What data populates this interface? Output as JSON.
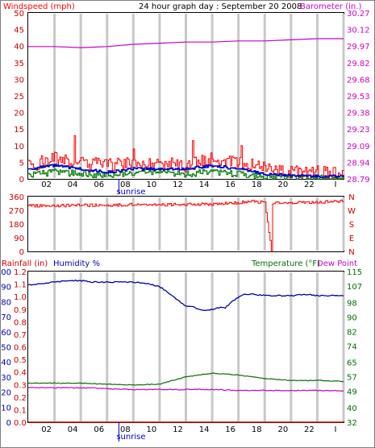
{
  "header": {
    "title": "24 hour graph day : September 20 2008",
    "left_label": "Windspeed (mph)",
    "right_label": "Barometer (in.)"
  },
  "colors": {
    "windspeed": "#ff0000",
    "barometer": "#cc00cc",
    "average": "#0000cc",
    "gust_low": "#008000",
    "humidity": "#0000aa",
    "temperature": "#007000",
    "dewpoint": "#cc00cc",
    "rain": "#cc0000",
    "grid": "#c8c8c8",
    "sunrise_marker": "#0000cc"
  },
  "x_ticks": [
    "02",
    "04",
    "06",
    "08",
    "10",
    "12",
    "14",
    "16",
    "18",
    "20",
    "22",
    "I"
  ],
  "sunrise_label": "sunrise",
  "chart_data": [
    {
      "type": "line",
      "name": "wind-barometer",
      "x_range": [
        0,
        24
      ],
      "y_left": {
        "label": "Windspeed (mph)",
        "ticks": [
          0,
          5,
          10,
          15,
          20,
          25,
          30,
          35,
          40,
          45,
          50
        ],
        "range": [
          0,
          50
        ]
      },
      "y_right": {
        "label": "Barometer (in.)",
        "ticks": [
          "28.79",
          "28.94",
          "29.09",
          "29.23",
          "29.38",
          "29.53",
          "29.68",
          "29.82",
          "29.97",
          "30.12",
          "30.27"
        ],
        "range": [
          28.79,
          30.27
        ]
      },
      "series": [
        {
          "name": "Windspeed (mph)",
          "axis": "left",
          "style": "gust",
          "x": [
            0,
            2,
            4,
            6,
            8,
            10,
            12,
            14,
            16,
            18,
            20,
            22,
            24
          ],
          "values": [
            4,
            6,
            5,
            4,
            5,
            5,
            4,
            6,
            5,
            3,
            2,
            2,
            2
          ],
          "peaks": [
            [
              3.5,
              13
            ],
            [
              12.5,
              11.5
            ],
            [
              16.2,
              10
            ],
            [
              8,
              9
            ],
            [
              2,
              8
            ]
          ]
        },
        {
          "values": [
            3,
            4,
            3,
            2,
            3,
            3,
            3,
            4,
            3,
            1.5,
            1,
            0.8,
            0.8
          ],
          "axis": "left",
          "style": "avg",
          "x": [
            0,
            2,
            4,
            6,
            8,
            10,
            12,
            14,
            16,
            18,
            20,
            22,
            24
          ]
        },
        {
          "values": [
            1,
            2,
            1.5,
            1,
            2,
            2,
            1.5,
            2,
            1.5,
            0.5,
            0.3,
            0.2,
            0.2
          ],
          "axis": "left",
          "style": "low",
          "x": [
            0,
            2,
            4,
            6,
            8,
            10,
            12,
            14,
            16,
            18,
            20,
            22,
            24
          ]
        },
        {
          "name": "Barometer (in.)",
          "axis": "right",
          "x": [
            0,
            2,
            4,
            6,
            8,
            10,
            12,
            14,
            16,
            18,
            20,
            22,
            24
          ],
          "values": [
            29.97,
            29.97,
            29.96,
            29.97,
            29.99,
            30.0,
            30.01,
            30.01,
            30.02,
            30.02,
            30.03,
            30.04,
            30.04
          ]
        }
      ]
    },
    {
      "type": "scatter",
      "name": "wind-direction",
      "x_range": [
        0,
        24
      ],
      "y_left": {
        "ticks": [
          0,
          90,
          180,
          270,
          360
        ],
        "range": [
          0,
          360
        ]
      },
      "y_right_labels": [
        "N",
        "W",
        "S",
        "E",
        "N"
      ],
      "series": [
        {
          "axis": "left",
          "x": [
            0,
            2,
            4,
            6,
            8,
            10,
            12,
            14,
            16,
            17,
            18,
            18.5,
            18.6,
            19,
            20,
            22,
            23,
            24
          ],
          "values": [
            300,
            300,
            305,
            300,
            310,
            305,
            310,
            310,
            320,
            330,
            320,
            0,
            320,
            320,
            320,
            320,
            330,
            330
          ]
        }
      ]
    },
    {
      "type": "line",
      "name": "humidity-temperature",
      "x_range": [
        0,
        24
      ],
      "left_label_rain": "Rainfall (in)",
      "left_label_hum": "Humidity %",
      "right_label_temp": "Temperature (°F)",
      "right_label_dew": "Dew Point",
      "y_left_humidity": {
        "ticks": [
          0,
          10,
          20,
          30,
          40,
          50,
          60,
          70,
          80,
          90,
          100
        ],
        "range": [
          0,
          100
        ]
      },
      "y_left_rain": {
        "ticks": [
          "0.0",
          "0.1",
          "0.2",
          "0.3",
          "0.4",
          "0.5",
          "0.6",
          "0.7",
          "0.8",
          "0.9",
          "1.0",
          "1.1",
          "1.2"
        ],
        "range": [
          0,
          1.2
        ]
      },
      "y_right": {
        "ticks": [
          32,
          40,
          49,
          57,
          65,
          74,
          82,
          90,
          98,
          107,
          115
        ],
        "range": [
          32,
          115
        ]
      },
      "series": [
        {
          "name": "Humidity %",
          "axis": "left",
          "x": [
            0,
            1,
            2,
            3,
            4,
            5,
            6,
            7,
            8,
            9,
            10,
            10.5,
            11,
            11.5,
            12,
            12.5,
            13,
            13.5,
            14,
            14.5,
            15,
            15.5,
            16,
            16.5,
            17,
            18,
            19,
            20,
            21,
            22,
            23,
            24
          ],
          "values": [
            91,
            92,
            93,
            94,
            94,
            93,
            93,
            93,
            93,
            92,
            90,
            87,
            84,
            80,
            77,
            77,
            75,
            74,
            75,
            76,
            76,
            80,
            83,
            85,
            85,
            84,
            84,
            84,
            85,
            84,
            84,
            84
          ]
        },
        {
          "name": "Temperature (°F)",
          "axis": "right",
          "x": [
            0,
            2,
            4,
            6,
            8,
            10,
            11,
            12,
            13,
            14,
            15,
            16,
            17,
            18,
            20,
            22,
            24
          ],
          "values": [
            53.5,
            53.5,
            53.5,
            53,
            52.5,
            53,
            55,
            57,
            58,
            59,
            58.5,
            58,
            57,
            56,
            55,
            55,
            54.5
          ]
        },
        {
          "name": "Dew Point",
          "axis": "right",
          "x": [
            0,
            2,
            4,
            6,
            8,
            10,
            12,
            14,
            16,
            18,
            20,
            22,
            24
          ],
          "values": [
            51,
            51,
            51,
            50.5,
            50,
            50,
            50,
            50,
            49.5,
            49.5,
            49.5,
            49.5,
            49.3
          ]
        },
        {
          "name": "Rainfall (in)",
          "axis": "left_rain",
          "x": [
            0,
            24
          ],
          "values": [
            0.0,
            0.0
          ]
        }
      ]
    }
  ]
}
